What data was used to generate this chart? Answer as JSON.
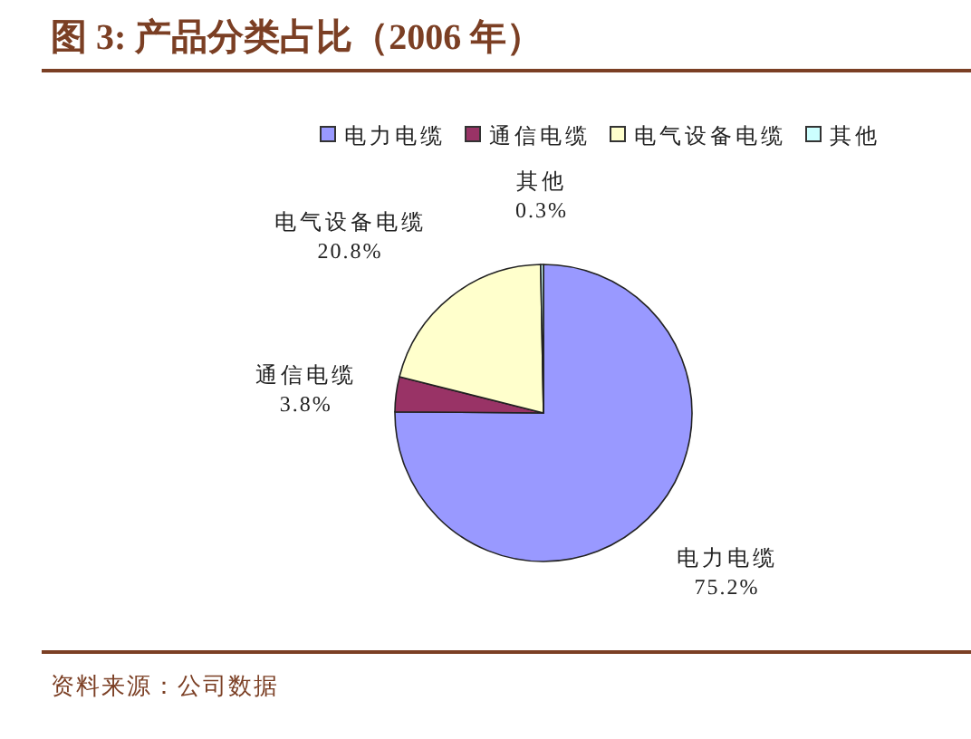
{
  "chart_data": {
    "type": "pie",
    "title": "图 3:  产品分类占比（2006 年）",
    "categories": [
      "电力电缆",
      "通信电缆",
      "电气设备电缆",
      "其他"
    ],
    "values": [
      75.2,
      3.8,
      20.8,
      0.3
    ],
    "colors": [
      "#9999ff",
      "#993366",
      "#ffffcc",
      "#ccffff"
    ],
    "value_labels": [
      "75.2%",
      "3.8%",
      "20.8%",
      "0.3%"
    ],
    "legend": "top",
    "annotations": [
      "资料来源：公司数据"
    ]
  }
}
